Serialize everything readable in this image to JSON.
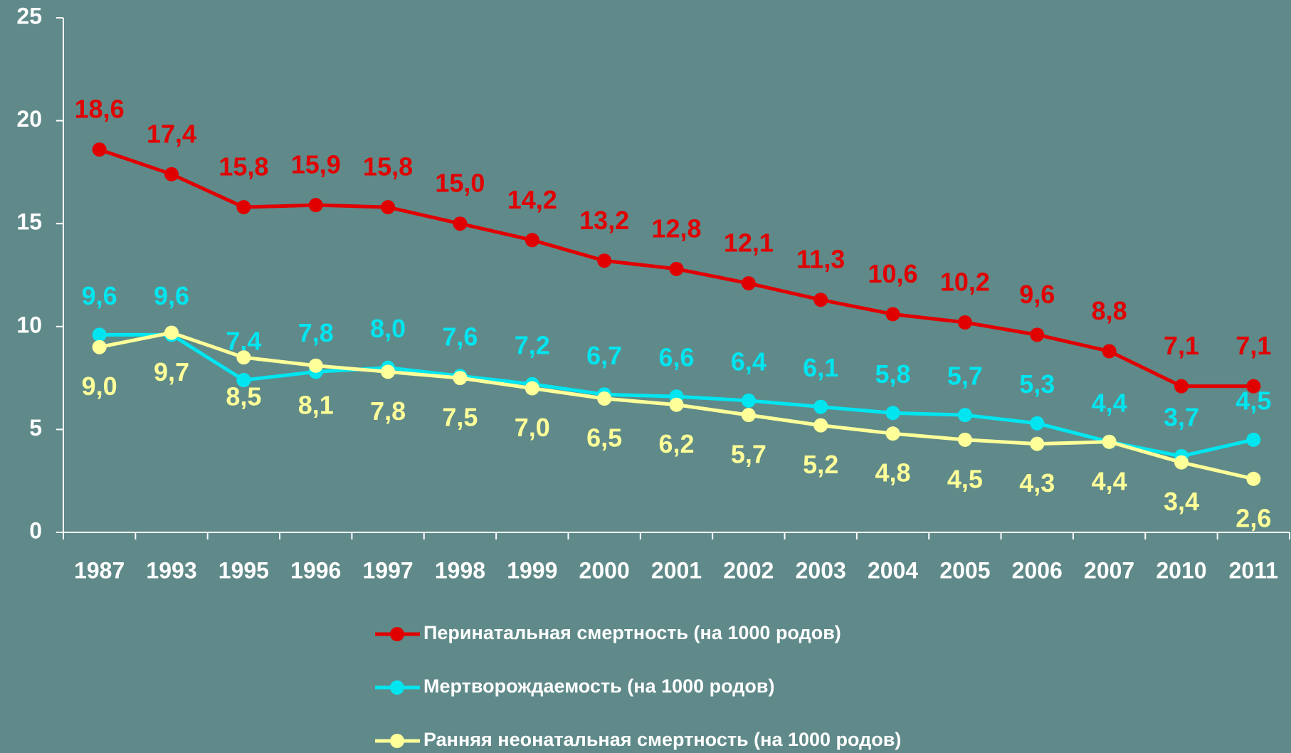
{
  "chart_data": {
    "type": "line",
    "categories": [
      "1987",
      "1993",
      "1995",
      "1996",
      "1997",
      "1998",
      "1999",
      "2000",
      "2001",
      "2002",
      "2003",
      "2004",
      "2005",
      "2006",
      "2007",
      "2010",
      "2011"
    ],
    "series": [
      {
        "name": "Перинатальная смертность (на 1000 родов)",
        "color": "#e00000",
        "values": [
          18.6,
          17.4,
          15.8,
          15.9,
          15.8,
          15.0,
          14.2,
          13.2,
          12.8,
          12.1,
          11.3,
          10.6,
          10.2,
          9.6,
          8.8,
          7.1,
          7.1
        ],
        "value_labels": [
          "18,6",
          "17,4",
          "15,8",
          "15,9",
          "15,8",
          "15,0",
          "14,2",
          "13,2",
          "12,8",
          "12,1",
          "11,3",
          "10,6",
          "10,2",
          "9,6",
          "8,8",
          "7,1",
          "7,1"
        ]
      },
      {
        "name": "Мертворождаемость (на 1000 родов)",
        "color": "#00e5f0",
        "values": [
          9.6,
          9.6,
          7.4,
          7.8,
          8.0,
          7.6,
          7.2,
          6.7,
          6.6,
          6.4,
          6.1,
          5.8,
          5.7,
          5.3,
          4.4,
          3.7,
          4.5
        ],
        "value_labels": [
          "9,6",
          "9,6",
          "7,4",
          "7,8",
          "8,0",
          "7,6",
          "7,2",
          "6,7",
          "6,6",
          "6,4",
          "6,1",
          "5,8",
          "5,7",
          "5,3",
          "4,4",
          "3,7",
          "4,5"
        ]
      },
      {
        "name": "Ранняя неонатальная смертность (на 1000 родов)",
        "color": "#ffff99",
        "values": [
          9.0,
          9.7,
          8.5,
          8.1,
          7.8,
          7.5,
          7.0,
          6.5,
          6.2,
          5.7,
          5.2,
          4.8,
          4.5,
          4.3,
          4.4,
          3.4,
          2.6
        ],
        "value_labels": [
          "9,0",
          "9,7",
          "8,5",
          "8,1",
          "7,8",
          "7,5",
          "7,0",
          "6,5",
          "6,2",
          "5,7",
          "5,2",
          "4,8",
          "4,5",
          "4,3",
          "4,4",
          "3,4",
          "2,6"
        ]
      }
    ],
    "ylim": [
      0,
      25
    ],
    "yticks": [
      0,
      5,
      10,
      15,
      20,
      25
    ],
    "grid": false
  }
}
